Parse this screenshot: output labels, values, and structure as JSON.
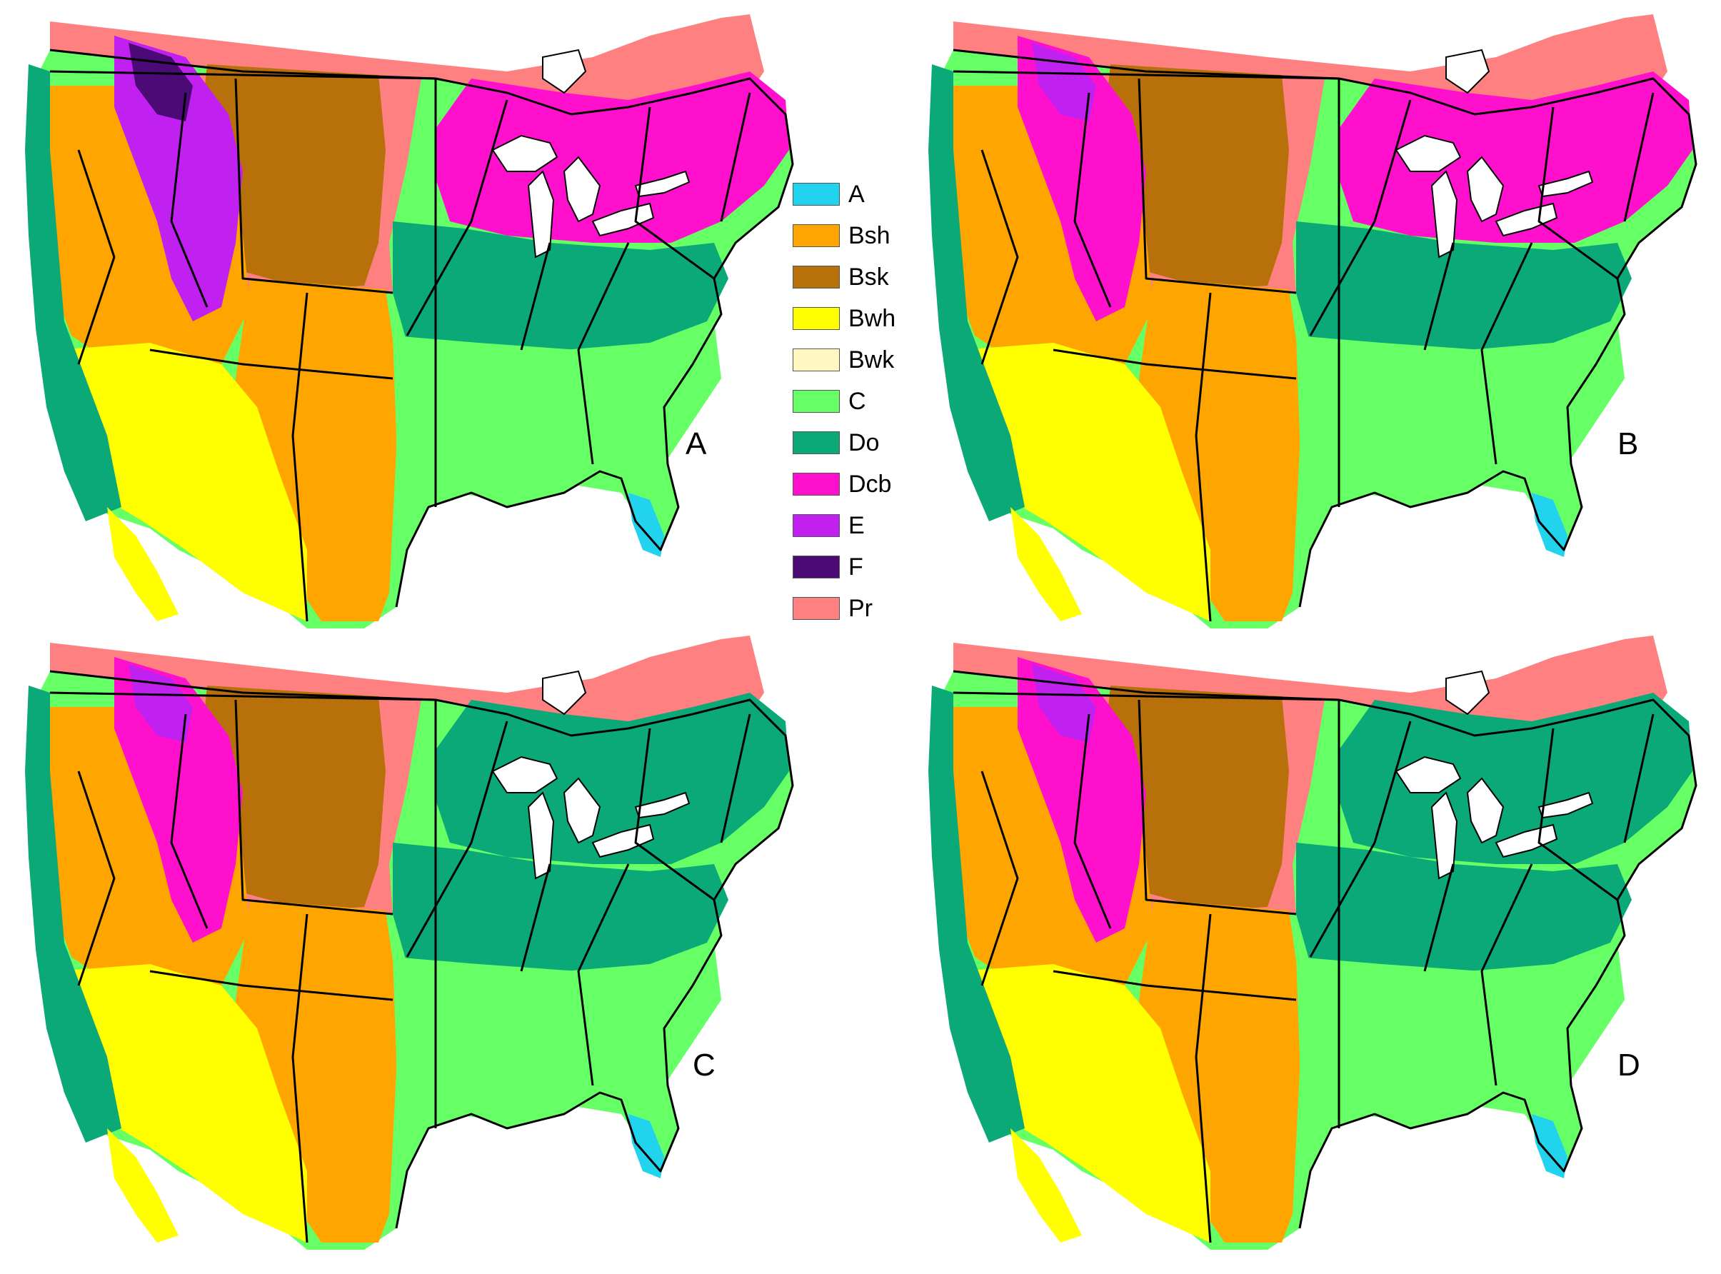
{
  "panels": [
    {
      "id": "a",
      "label": "A",
      "scenario": {
        "ne": "Dcb",
        "mid": "Do",
        "plainsSouth": "Bsh",
        "plainsNorth": "Bsk",
        "west": "Bsh",
        "mountains": "E",
        "coldMountains": "F",
        "florida": "A"
      }
    },
    {
      "id": "b",
      "label": "B",
      "scenario": {
        "ne": "Dcb",
        "mid": "Do",
        "plainsSouth": "Bsh",
        "plainsNorth": "Bsk",
        "west": "Bsh",
        "mountains": "Dcb",
        "coldMountains": "E",
        "florida": "A"
      }
    },
    {
      "id": "c",
      "label": "C",
      "scenario": {
        "ne": "Do",
        "mid": "Do",
        "plainsSouth": "Bsh",
        "plainsNorth": "Bsk",
        "west": "Bsh",
        "mountains": "Dcb",
        "coldMountains": "E",
        "florida": "A"
      }
    },
    {
      "id": "d",
      "label": "D",
      "scenario": {
        "ne": "Do",
        "mid": "Do",
        "plainsSouth": "Bsh",
        "plainsNorth": "Bsk",
        "west": "Bsh",
        "mountains": "Dcb",
        "coldMountains": "E",
        "florida": "A"
      }
    }
  ],
  "legend": [
    {
      "code": "A",
      "color": "#22D3EE"
    },
    {
      "code": "Bsh",
      "color": "#FFA500"
    },
    {
      "code": "Bsk",
      "color": "#B8700A"
    },
    {
      "code": "Bwh",
      "color": "#FFFF00"
    },
    {
      "code": "Bwk",
      "color": "#FFF6C0"
    },
    {
      "code": "C",
      "color": "#66FF66"
    },
    {
      "code": "Do",
      "color": "#0BA878"
    },
    {
      "code": "Dcb",
      "color": "#FF10CC"
    },
    {
      "code": "E",
      "color": "#C020F0"
    },
    {
      "code": "F",
      "color": "#4B0A75"
    },
    {
      "code": "Pr",
      "color": "#FF8080"
    }
  ]
}
